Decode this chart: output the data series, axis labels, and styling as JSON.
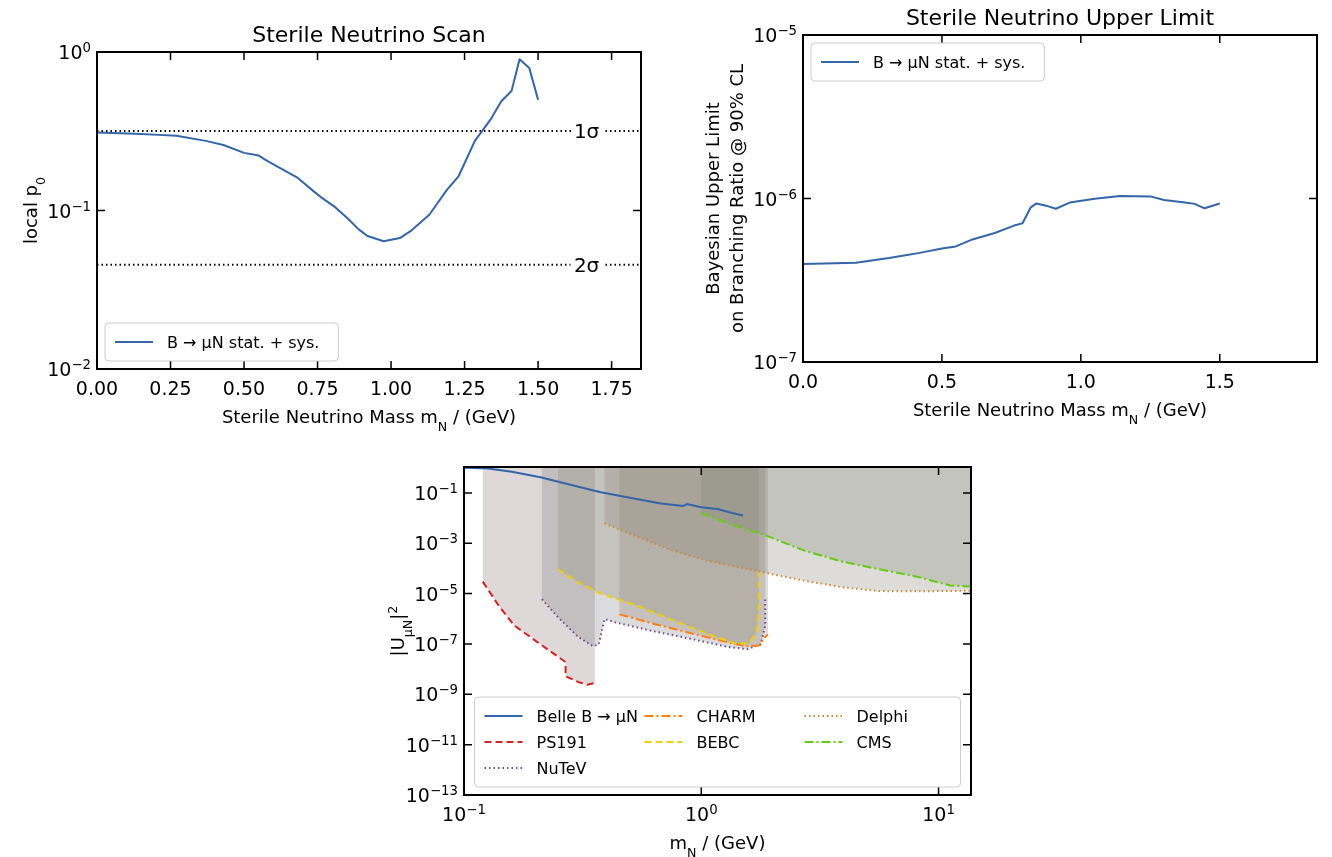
{
  "chart_data": [
    {
      "type": "line",
      "title": "Sterile Neutrino Scan",
      "xlabel": "Sterile Neutrino Mass m$_{N}$ / (GeV)",
      "ylabel": "local p$_{0}$",
      "log": "y",
      "legend": "lower left",
      "xlim": [
        0,
        1.85
      ],
      "xticks": [
        {
          "value": 0,
          "label": "0.00"
        },
        {
          "value": 0.25,
          "label": "0.25"
        },
        {
          "value": 0.5,
          "label": "0.50"
        },
        {
          "value": 0.75,
          "label": "0.75"
        },
        {
          "value": 1,
          "label": "1.00"
        },
        {
          "value": 1.25,
          "label": "1.25"
        },
        {
          "value": 1.5,
          "label": "1.50"
        },
        {
          "value": 1.75,
          "label": "1.75"
        }
      ],
      "ylim": [
        0.01,
        1
      ],
      "yticks": [
        {
          "value": 0.01,
          "label": "10$^{−2}$"
        },
        {
          "value": 0.1,
          "label": "10$^{−1}$"
        },
        {
          "value": 1,
          "label": "10$^{0}$"
        }
      ],
      "ref_lines": [
        {
          "axis": "y",
          "value": 0.317,
          "label": "1σ",
          "line_style": "dotted",
          "color": "#000000"
        },
        {
          "axis": "y",
          "value": 0.0455,
          "label": "2σ",
          "line_style": "dotted",
          "color": "#000000"
        }
      ],
      "series": [
        {
          "name": "B → μN stat. + sys.",
          "color": "#3465a8",
          "line_style": "solid",
          "x": [
            0,
            0.13,
            0.21,
            0.27,
            0.37,
            0.43,
            0.5,
            0.55,
            0.58,
            0.64,
            0.68,
            0.735,
            0.76,
            0.81,
            0.85,
            0.89,
            0.92,
            0.975,
            1.03,
            1.07,
            1.13,
            1.19,
            1.23,
            1.285,
            1.34,
            1.375,
            1.41,
            1.437,
            1.47,
            1.5
          ],
          "values": [
            0.31,
            0.305,
            0.3,
            0.296,
            0.275,
            0.259,
            0.231,
            0.222,
            0.205,
            0.178,
            0.162,
            0.133,
            0.122,
            0.105,
            0.09,
            0.076,
            0.069,
            0.064,
            0.067,
            0.075,
            0.094,
            0.135,
            0.165,
            0.275,
            0.379,
            0.489,
            0.569,
            0.9,
            0.794,
            0.5
          ]
        }
      ]
    },
    {
      "type": "line",
      "title": "Sterile Neutrino Upper Limit",
      "xlabel": "Sterile Neutrino Mass m$_{N}$ / (GeV)",
      "ylabel": "Bayesian Upper Limit\non Branching Ratio @ 90% CL",
      "log": "y",
      "legend": "upper left",
      "xlim": [
        0,
        1.85
      ],
      "xticks": [
        {
          "value": 0,
          "label": "0.0"
        },
        {
          "value": 0.5,
          "label": "0.5"
        },
        {
          "value": 1,
          "label": "1.0"
        },
        {
          "value": 1.5,
          "label": "1.5"
        }
      ],
      "ylim": [
        1e-07,
        1e-05
      ],
      "yticks": [
        {
          "value": 1e-07,
          "label": "10$^{−7}$"
        },
        {
          "value": 1e-06,
          "label": "10$^{−6}$"
        },
        {
          "value": 1e-05,
          "label": "10$^{−5}$"
        }
      ],
      "series": [
        {
          "name": "B → μN stat. + sys.",
          "color": "#3465a8",
          "line_style": "solid",
          "x": [
            0,
            0.19,
            0.31,
            0.42,
            0.5,
            0.55,
            0.61,
            0.69,
            0.76,
            0.79,
            0.82,
            0.84,
            0.875,
            0.91,
            0.96,
            1.05,
            1.14,
            1.25,
            1.3,
            1.375,
            1.41,
            1.445,
            1.5
          ],
          "values": [
            3.97e-07,
            4.05e-07,
            4.33e-07,
            4.65e-07,
            4.94e-07,
            5.09e-07,
            5.62e-07,
            6.15e-07,
            6.83e-07,
            7.05e-07,
            8.83e-07,
            9.33e-07,
            9.04e-07,
            8.66e-07,
            9.44e-07,
            9.98e-07,
            1.035e-06,
            1.03e-06,
            9.8e-07,
            9.44e-07,
            9.27e-07,
            8.71e-07,
            9.33e-07
          ]
        }
      ]
    },
    {
      "type": "line",
      "xlabel": "m$_{N}$ / (GeV)",
      "ylabel": "|U$_{μN}$|$^{2}$",
      "log": "xy",
      "legend": "bottom",
      "xlim": [
        0.1,
        13.7
      ],
      "xticks": [
        {
          "value": 0.1,
          "label": "10$^{−1}$"
        },
        {
          "value": 1,
          "label": "10$^{0}$"
        },
        {
          "value": 10,
          "label": "10$^{1}$"
        }
      ],
      "ylim": [
        1e-13,
        1.07
      ],
      "yticks": [
        {
          "value": 1e-13,
          "label": "10$^{−13}$"
        },
        {
          "value": 1e-11,
          "label": "10$^{−11}$"
        },
        {
          "value": 1e-09,
          "label": "10$^{−9}$"
        },
        {
          "value": 1e-07,
          "label": "10$^{−7}$"
        },
        {
          "value": 1e-05,
          "label": "10$^{−5}$"
        },
        {
          "value": 0.001,
          "label": "10$^{−3}$"
        },
        {
          "value": 0.1,
          "label": "10$^{−1}$"
        }
      ],
      "series": [
        {
          "name": "Belle B → μN",
          "color": "#3465a8",
          "line_style": "solid",
          "x": [
            0.1,
            0.126,
            0.157,
            0.21,
            0.281,
            0.377,
            0.5,
            0.676,
            0.84,
            0.87,
            1.0,
            1.17,
            1.35,
            1.5
          ],
          "values": [
            1.0,
            0.93,
            0.71,
            0.42,
            0.21,
            0.107,
            0.064,
            0.038,
            0.03,
            0.036,
            0.027,
            0.023,
            0.016,
            0.0127
          ]
        },
        {
          "name": "PS191",
          "color": "#d62020",
          "line_style": "dashed",
          "x": [
            0.12,
            0.141,
            0.163,
            0.21,
            0.268,
            0.268,
            0.303,
            0.331,
            0.356
          ],
          "values": [
            3e-05,
            3e-06,
            5.4e-07,
            9.7e-08,
            1.9e-08,
            5.2e-09,
            3.1e-09,
            2.4e-09,
            2.8e-09
          ],
          "lower": [
            3e-05,
            3e-06,
            5.4e-07,
            9.7e-08,
            1.9e-08,
            5.2e-09,
            3.1e-09,
            2.4e-09,
            2.8e-09
          ],
          "upper": [
            1.07,
            1.07,
            1.07,
            1.07,
            1.07,
            1.07,
            1.07,
            1.07,
            1.07
          ]
        },
        {
          "name": "NuTeV",
          "color": "#6a4c8c",
          "line_style": "dotted",
          "x": [
            0.213,
            0.251,
            0.303,
            0.35,
            0.37,
            0.391,
            0.436,
            0.628,
            0.9,
            1.3,
            1.56,
            1.78,
            1.86,
            1.86
          ],
          "values": [
            6e-06,
            1.07e-06,
            1.9e-07,
            8.1e-08,
            9.7e-08,
            9.8e-07,
            7.1e-07,
            3.2e-07,
            1.6e-07,
            7.6e-08,
            6.2e-08,
            9.7e-08,
            5.4e-07,
            6e-06
          ],
          "lower": [
            6e-06,
            1.07e-06,
            1.9e-07,
            8.1e-08,
            9.7e-08,
            9.8e-07,
            7.1e-07,
            3.2e-07,
            1.6e-07,
            7.6e-08,
            6.2e-08,
            9.7e-08,
            5.4e-07,
            6e-06
          ],
          "upper": [
            1.07,
            1.07,
            1.07,
            1.07,
            1.07,
            1.07,
            1.07,
            1.07,
            1.07,
            1.07,
            1.07,
            1.07,
            1.07,
            1.07
          ]
        },
        {
          "name": "CHARM",
          "color": "#ff7f0e",
          "line_style": "dashdot",
          "x": [
            0.452,
            0.628,
            0.9,
            1.3,
            1.53,
            1.75,
            1.86,
            1.91
          ],
          "values": [
            1.5e-06,
            6.4e-07,
            2.7e-07,
            1.15e-07,
            8.1e-08,
            8.7e-08,
            1.9e-07,
            2.4e-07
          ],
          "lower": [
            1.5e-06,
            6.4e-07,
            2.7e-07,
            1.15e-07,
            8.1e-08,
            8.7e-08,
            1.9e-07,
            2.4e-07
          ],
          "upper": [
            1.07,
            1.07,
            1.07,
            1.07,
            1.07,
            1.07,
            1.07,
            1.07
          ]
        },
        {
          "name": "BEBC",
          "color": "#f0d000",
          "line_style": "dashed",
          "x": [
            0.249,
            0.303,
            0.377,
            0.524,
            0.753,
            1.09,
            1.4,
            1.59,
            1.71,
            1.75,
            1.75
          ],
          "values": [
            9.3e-05,
            2.8e-05,
            1e-05,
            3.6e-06,
            9.1e-07,
            2.3e-07,
            1.03e-07,
            1.07e-07,
            2.7e-07,
            2.1e-06,
            7.9e-05
          ],
          "lower": [
            9.3e-05,
            2.8e-05,
            1e-05,
            3.6e-06,
            9.1e-07,
            2.3e-07,
            1.03e-07,
            1.07e-07,
            2.7e-07,
            2.1e-06,
            7.9e-05
          ],
          "upper": [
            1.07,
            1.07,
            1.07,
            1.07,
            1.07,
            1.07,
            1.07,
            1.07,
            1.07,
            1.07,
            1.07
          ]
        },
        {
          "name": "Delphi",
          "color": "#cc8833",
          "line_style": "dotted",
          "x": [
            0.391,
            0.524,
            0.753,
            1.09,
            1.88,
            2.7,
            3.9,
            5.6,
            8.1,
            13.7
          ],
          "values": [
            0.0062,
            0.002,
            0.00052,
            0.00019,
            6.6e-05,
            3.3e-05,
            1.8e-05,
            1.26e-05,
            1.23e-05,
            1.3e-05
          ],
          "lower": [
            0.0062,
            0.002,
            0.00052,
            0.00019,
            6.6e-05,
            3.3e-05,
            1.8e-05,
            1.26e-05,
            1.23e-05,
            1.3e-05
          ],
          "upper": [
            1.07,
            1.07,
            1.07,
            1.07,
            1.07,
            1.07,
            1.07,
            1.07,
            1.07,
            1.07
          ]
        },
        {
          "name": "CMS",
          "color": "#66cc11",
          "line_style": "dashdot",
          "x": [
            1.0,
            1.3,
            1.88,
            2.7,
            3.9,
            5.6,
            8.1,
            11.2,
            13.7
          ],
          "values": [
            0.016,
            0.0062,
            0.002,
            0.00052,
            0.00019,
            9.3e-05,
            4.7e-05,
            2.1e-05,
            1.9e-05
          ],
          "lower": [
            0.016,
            0.0062,
            0.002,
            0.00052,
            0.00019,
            9.3e-05,
            4.7e-05,
            2.1e-05,
            1.9e-05
          ],
          "upper": [
            1.07,
            1.07,
            1.07,
            1.07,
            1.07,
            1.07,
            1.07,
            1.07,
            1.07
          ]
        }
      ]
    }
  ]
}
